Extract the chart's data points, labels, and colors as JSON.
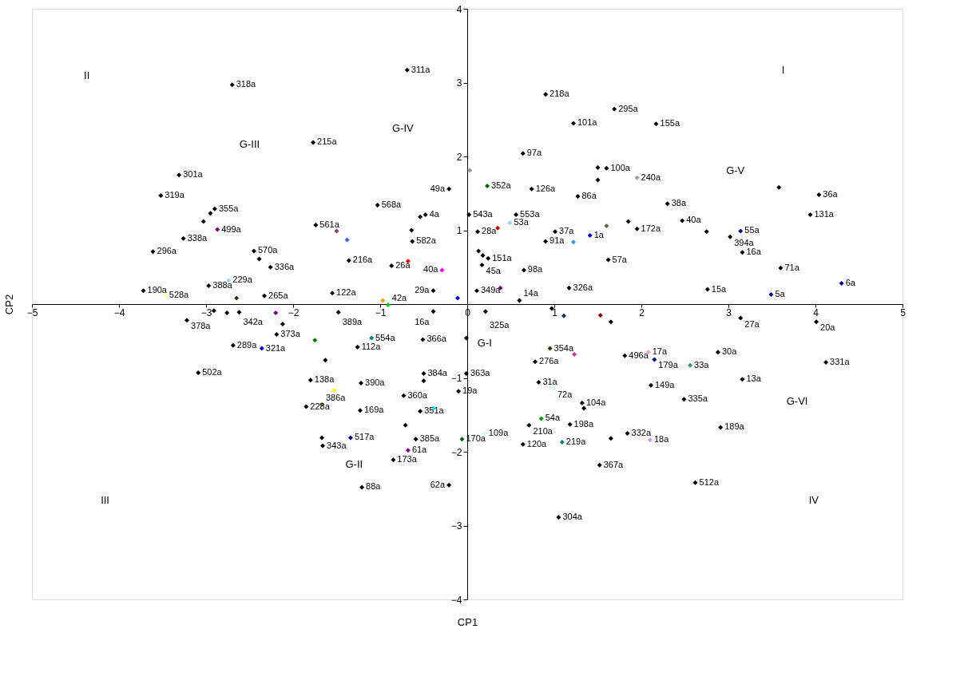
{
  "chart_data": {
    "type": "scatter",
    "xlabel": "CP1",
    "ylabel": "CP2",
    "marker": "diamond",
    "grid": false,
    "xlim": [
      -5,
      5
    ],
    "ylim": [
      -4,
      4
    ],
    "xticks": [
      -5,
      -4,
      -3,
      -2,
      -1,
      0,
      1,
      2,
      3,
      4,
      5
    ],
    "yticks": [
      -4,
      -3,
      -2,
      -1,
      1,
      2,
      3,
      4
    ],
    "x": [
      -2.7,
      -1.77,
      -3.31,
      -3.52,
      -2.9,
      -2.95,
      -3.03,
      -2.87,
      -3.26,
      -3.61,
      -2.45,
      -2.39,
      -2.26,
      -1.74,
      -1.5,
      -1.38,
      -2.97,
      -2.74,
      -3.72,
      -3.47,
      -2.65,
      -2.33,
      -2.91,
      -2.76,
      -2.62,
      -2.2,
      -3.22,
      -2.12,
      -2.19,
      -1.75,
      -2.69,
      -2.36,
      -3.09,
      -1.55,
      -1.36,
      -1.48,
      -0.97,
      -0.91,
      -1.1,
      -1.26,
      -1.63,
      -1.8,
      -1.53,
      -1.22,
      -1.85,
      -1.67,
      -1.23,
      -0.71,
      -1.67,
      -1.66,
      -1.34,
      -0.59,
      -0.68,
      -0.85,
      -1.21,
      -0.21,
      -0.06,
      0.2,
      -0.51,
      -0.5,
      -0.5,
      -0.73,
      -0.39,
      -0.54,
      -0.1,
      -0.01,
      -0.01,
      -0.39,
      -0.11,
      -0.39,
      0.11,
      0.38,
      0.21,
      0.6,
      -0.69,
      -0.21,
      0.03,
      0.23,
      0.74,
      0.64,
      -1.03,
      -0.54,
      -0.48,
      0.02,
      0.56,
      0.49,
      0.35,
      0.12,
      -0.64,
      -0.63,
      0.13,
      0.18,
      0.24,
      0.17,
      -0.68,
      -0.87,
      -0.29,
      0.65,
      0.9,
      1.69,
      1.22,
      2.17,
      1.5,
      1.6,
      1.5,
      1.95,
      1.27,
      2.3,
      2.47,
      1.85,
      1.95,
      2.75,
      3.14,
      3.02,
      3.58,
      4.04,
      3.94,
      3.16,
      3.6,
      4.3,
      3.49,
      2.76,
      3.14,
      4.01,
      1.01,
      1.41,
      1.6,
      0.9,
      1.22,
      1.62,
      1.17,
      0.97,
      1.11,
      1.53,
      1.65,
      0.95,
      1.23,
      0.78,
      1.81,
      2.08,
      2.15,
      2.56,
      2.88,
      4.12,
      3.16,
      0.82,
      0.99,
      2.11,
      2.49,
      1.32,
      1.34,
      0.85,
      0.71,
      1.18,
      0.64,
      1.09,
      1.65,
      1.84,
      2.1,
      2.91,
      1.52,
      2.62,
      1.05
    ],
    "values": [
      2.97,
      2.19,
      1.75,
      1.47,
      1.29,
      1.23,
      1.12,
      1.01,
      0.89,
      0.71,
      0.72,
      0.61,
      0.5,
      1.07,
      0.99,
      0.87,
      0.25,
      0.32,
      0.18,
      0.12,
      0.08,
      0.11,
      -0.09,
      -0.12,
      -0.11,
      -0.12,
      -0.22,
      -0.27,
      -0.41,
      -0.49,
      -0.56,
      -0.6,
      -0.93,
      0.15,
      0.59,
      -0.11,
      0.05,
      -0.01,
      -0.46,
      -0.58,
      -0.76,
      -1.03,
      -1.17,
      -1.07,
      -1.39,
      -1.36,
      -1.44,
      -1.64,
      -1.81,
      -1.92,
      -1.81,
      -1.83,
      -1.98,
      -2.11,
      -2.48,
      -2.45,
      -1.83,
      -1.75,
      -0.48,
      -0.94,
      -1.04,
      -1.24,
      -1.41,
      -1.45,
      -1.18,
      -0.94,
      -0.46,
      0.18,
      0.08,
      -0.1,
      0.18,
      0.22,
      -0.1,
      0.05,
      3.17,
      1.56,
      1.81,
      1.6,
      1.56,
      2.04,
      1.34,
      1.18,
      1.21,
      1.21,
      1.21,
      1.1,
      1.03,
      0.98,
      1.0,
      0.85,
      0.72,
      0.66,
      0.62,
      0.53,
      0.58,
      0.52,
      0.46,
      0.46,
      2.84,
      2.64,
      2.45,
      2.44,
      1.85,
      1.84,
      1.68,
      1.71,
      1.46,
      1.36,
      1.13,
      1.12,
      1.02,
      0.98,
      0.99,
      0.91,
      1.58,
      1.48,
      1.21,
      0.7,
      0.49,
      0.28,
      0.13,
      0.2,
      -0.19,
      -0.24,
      0.98,
      0.93,
      1.06,
      0.85,
      0.84,
      0.6,
      0.22,
      -0.06,
      -0.16,
      -0.15,
      -0.24,
      -0.6,
      -0.68,
      -0.78,
      -0.7,
      -0.65,
      -0.75,
      -0.83,
      -0.65,
      -0.79,
      -1.02,
      -1.06,
      -1.15,
      -1.1,
      -1.29,
      -1.34,
      -1.41,
      -1.55,
      -1.64,
      -1.63,
      -1.9,
      -1.87,
      -1.82,
      -1.75,
      -1.84,
      -1.67,
      -2.18,
      -2.42,
      -2.89
    ],
    "colors": [
      "#000000",
      "#000000",
      "#000000",
      "#000000",
      "#000000",
      "#000000",
      "#000000",
      "#800080",
      "#000000",
      "#000000",
      "#000000",
      "#000000",
      "#000000",
      "#000000",
      "#993366",
      "#3366ff",
      "#000000",
      "#99ccff",
      "#000000",
      "#ffff99",
      "#333300",
      "#000000",
      "#000000",
      "#000000",
      "#000000",
      "#800080",
      "#000000",
      "#000000",
      "#000000",
      "#008000",
      "#000000",
      "#0000ff",
      "#000000",
      "#000000",
      "#000000",
      "#000000",
      "#ff9900",
      "#00cc00",
      "#008080",
      "#000000",
      "#000000",
      "#000000",
      "#ffff00",
      "#000000",
      "#000000",
      "#808000",
      "#000000",
      "#000000",
      "#000000",
      "#000000",
      "#000080",
      "#000000",
      "#800080",
      "#000000",
      "#000000",
      "#000000",
      "#006600",
      "#ccffff",
      "#000000",
      "#000000",
      "#000000",
      "#000000",
      "#00ffff",
      "#000000",
      "#000000",
      "#000000",
      "#000000",
      "#000000",
      "#0000ff",
      "#000000",
      "#000000",
      "#800080",
      "#000000",
      "#000000",
      "#000000",
      "#000000",
      "#969696",
      "#006600",
      "#000000",
      "#000000",
      "#000000",
      "#000000",
      "#000000",
      "#000000",
      "#000000",
      "#99ccff",
      "#cc0000",
      "#000000",
      "#000000",
      "#000000",
      "#000000",
      "#000000",
      "#000000",
      "#000000",
      "#ff0000",
      "#000000",
      "#ff00ff",
      "#000000",
      "#000000",
      "#000000",
      "#000000",
      "#000000",
      "#000000",
      "#000000",
      "#000000",
      "#a0a0a0",
      "#000000",
      "#000000",
      "#000000",
      "#000000",
      "#000000",
      "#000000",
      "#000099",
      "#000000",
      "#000000",
      "#000000",
      "#000000",
      "#000000",
      "#000000",
      "#000099",
      "#000099",
      "#000000",
      "#000000",
      "#000000",
      "#000000",
      "#0000cc",
      "#666633",
      "#000000",
      "#3399ff",
      "#000000",
      "#000000",
      "#000000",
      "#003366",
      "#990000",
      "#000000",
      "#333300",
      "#cc3399",
      "#000000",
      "#000000",
      "#ff99cc",
      "#000080",
      "#339966",
      "#000000",
      "#000000",
      "#000000",
      "#000000",
      "#ccffff",
      "#000000",
      "#000000",
      "#000000",
      "#000000",
      "#009900",
      "#000000",
      "#000000",
      "#000000",
      "#008080",
      "#000000",
      "#000000",
      "#cc99ff",
      "#000000",
      "#000000",
      "#000000",
      "#000000"
    ],
    "annotations": [
      {
        "text": "318a",
        "x": -2.7,
        "y": 2.97
      },
      {
        "text": "215a",
        "x": -1.77,
        "y": 2.19
      },
      {
        "text": "301a",
        "x": -3.31,
        "y": 1.75
      },
      {
        "text": "319a",
        "x": -3.52,
        "y": 1.47
      },
      {
        "text": "355a",
        "x": -2.9,
        "y": 1.29
      },
      {
        "text": "499a",
        "x": -2.87,
        "y": 1.01
      },
      {
        "text": "338a",
        "x": -3.26,
        "y": 0.89
      },
      {
        "text": "296a",
        "x": -3.61,
        "y": 0.71
      },
      {
        "text": "570a",
        "x": -2.45,
        "y": 0.72
      },
      {
        "text": "336a",
        "x": -2.26,
        "y": 0.5
      },
      {
        "text": "561a",
        "x": -1.74,
        "y": 1.07
      },
      {
        "text": "388a",
        "x": -2.97,
        "y": 0.25
      },
      {
        "text": "229a",
        "x": -2.74,
        "y": 0.32
      },
      {
        "text": "190a",
        "x": -3.72,
        "y": 0.18
      },
      {
        "text": "528a",
        "x": -3.47,
        "y": 0.12
      },
      {
        "text": "265a",
        "x": -2.33,
        "y": 0.11
      },
      {
        "text": "342a",
        "x": -2.62,
        "y": -0.11
      },
      {
        "text": "378a",
        "x": -3.22,
        "y": -0.22
      },
      {
        "text": "373a",
        "x": -2.19,
        "y": -0.41
      },
      {
        "text": "289a",
        "x": -2.69,
        "y": -0.56
      },
      {
        "text": "321a",
        "x": -2.36,
        "y": -0.6
      },
      {
        "text": "502a",
        "x": -3.09,
        "y": -0.93
      },
      {
        "text": "122a",
        "x": -1.55,
        "y": 0.15
      },
      {
        "text": "216a",
        "x": -1.36,
        "y": 0.59
      },
      {
        "text": "389a",
        "x": -1.48,
        "y": -0.11
      },
      {
        "text": "42a",
        "x": -0.91,
        "y": -0.01
      },
      {
        "text": "554a",
        "x": -1.1,
        "y": -0.46
      },
      {
        "text": "112a",
        "x": -1.26,
        "y": -0.58
      },
      {
        "text": "138a",
        "x": -1.8,
        "y": -1.03
      },
      {
        "text": "390a",
        "x": -1.22,
        "y": -1.07
      },
      {
        "text": "228a",
        "x": -1.85,
        "y": -1.39
      },
      {
        "text": "386a",
        "x": -1.67,
        "y": -1.36
      },
      {
        "text": "169a",
        "x": -1.23,
        "y": -1.44
      },
      {
        "text": "343a",
        "x": -1.66,
        "y": -1.92
      },
      {
        "text": "517a",
        "x": -1.34,
        "y": -1.81
      },
      {
        "text": "385a",
        "x": -0.59,
        "y": -1.83
      },
      {
        "text": "61a",
        "x": -0.68,
        "y": -1.98
      },
      {
        "text": "173a",
        "x": -0.85,
        "y": -2.11
      },
      {
        "text": "88a",
        "x": -1.21,
        "y": -2.48
      },
      {
        "text": "62a",
        "x": -0.21,
        "y": -2.45
      },
      {
        "text": "170a",
        "x": -0.06,
        "y": -1.83
      },
      {
        "text": "109a",
        "x": 0.2,
        "y": -1.75
      },
      {
        "text": "366a",
        "x": -0.51,
        "y": -0.48
      },
      {
        "text": "384a",
        "x": -0.5,
        "y": -0.94
      },
      {
        "text": "360a",
        "x": -0.73,
        "y": -1.24
      },
      {
        "text": "351a",
        "x": -0.54,
        "y": -1.45
      },
      {
        "text": "19a",
        "x": -0.1,
        "y": -1.18
      },
      {
        "text": "363a",
        "x": -0.01,
        "y": -0.94
      },
      {
        "text": "29a",
        "x": -0.39,
        "y": 0.18
      },
      {
        "text": "16a",
        "x": -0.39,
        "y": -0.1
      },
      {
        "text": "349a",
        "x": 0.11,
        "y": 0.18
      },
      {
        "text": "325a",
        "x": 0.21,
        "y": -0.1
      },
      {
        "text": "14a",
        "x": 0.6,
        "y": 0.05
      },
      {
        "text": "311a",
        "x": -0.69,
        "y": 3.17
      },
      {
        "text": "49a",
        "x": -0.21,
        "y": 1.56
      },
      {
        "text": "352a",
        "x": 0.23,
        "y": 1.6
      },
      {
        "text": "126a",
        "x": 0.74,
        "y": 1.56
      },
      {
        "text": "97a",
        "x": 0.64,
        "y": 2.04
      },
      {
        "text": "568a",
        "x": -1.03,
        "y": 1.34
      },
      {
        "text": "4a",
        "x": -0.48,
        "y": 1.21
      },
      {
        "text": "543a",
        "x": 0.02,
        "y": 1.21
      },
      {
        "text": "553a",
        "x": 0.56,
        "y": 1.21
      },
      {
        "text": "53a",
        "x": 0.49,
        "y": 1.1
      },
      {
        "text": "28a",
        "x": 0.12,
        "y": 0.98
      },
      {
        "text": "582a",
        "x": -0.63,
        "y": 0.85
      },
      {
        "text": "151a",
        "x": 0.24,
        "y": 0.62
      },
      {
        "text": "45a",
        "x": 0.17,
        "y": 0.53
      },
      {
        "text": "26a",
        "x": -0.87,
        "y": 0.52
      },
      {
        "text": "40a",
        "x": -0.29,
        "y": 0.46
      },
      {
        "text": "98a",
        "x": 0.65,
        "y": 0.46
      },
      {
        "text": "218a",
        "x": 0.9,
        "y": 2.84
      },
      {
        "text": "295a",
        "x": 1.69,
        "y": 2.64
      },
      {
        "text": "101a",
        "x": 1.22,
        "y": 2.45
      },
      {
        "text": "155a",
        "x": 2.17,
        "y": 2.44
      },
      {
        "text": "100a",
        "x": 1.6,
        "y": 1.84
      },
      {
        "text": "240a",
        "x": 1.95,
        "y": 1.71
      },
      {
        "text": "86a",
        "x": 1.27,
        "y": 1.46
      },
      {
        "text": "38a",
        "x": 2.3,
        "y": 1.36
      },
      {
        "text": "40a",
        "x": 2.47,
        "y": 1.13
      },
      {
        "text": "172a",
        "x": 1.95,
        "y": 1.02
      },
      {
        "text": "55a",
        "x": 3.14,
        "y": 0.99
      },
      {
        "text": "394a",
        "x": 3.02,
        "y": 0.91
      },
      {
        "text": "36a",
        "x": 4.04,
        "y": 1.48
      },
      {
        "text": "131a",
        "x": 3.94,
        "y": 1.21
      },
      {
        "text": "16a",
        "x": 3.16,
        "y": 0.7
      },
      {
        "text": "71a",
        "x": 3.6,
        "y": 0.49
      },
      {
        "text": "6a",
        "x": 4.3,
        "y": 0.28
      },
      {
        "text": "5a",
        "x": 3.49,
        "y": 0.13
      },
      {
        "text": "15a",
        "x": 2.76,
        "y": 0.2
      },
      {
        "text": "27a",
        "x": 3.14,
        "y": -0.19
      },
      {
        "text": "20a",
        "x": 4.01,
        "y": -0.24
      },
      {
        "text": "37a",
        "x": 1.01,
        "y": 0.98
      },
      {
        "text": "1a",
        "x": 1.41,
        "y": 0.93
      },
      {
        "text": "91a",
        "x": 0.9,
        "y": 0.85
      },
      {
        "text": "57a",
        "x": 1.62,
        "y": 0.6
      },
      {
        "text": "326a",
        "x": 1.17,
        "y": 0.22
      },
      {
        "text": "354a",
        "x": 0.95,
        "y": -0.6
      },
      {
        "text": "276a",
        "x": 0.78,
        "y": -0.78
      },
      {
        "text": "496a",
        "x": 1.81,
        "y": -0.7
      },
      {
        "text": "17a",
        "x": 2.08,
        "y": -0.65
      },
      {
        "text": "179a",
        "x": 2.15,
        "y": -0.75
      },
      {
        "text": "33a",
        "x": 2.56,
        "y": -0.83
      },
      {
        "text": "30a",
        "x": 2.88,
        "y": -0.65
      },
      {
        "text": "331a",
        "x": 4.12,
        "y": -0.79
      },
      {
        "text": "13a",
        "x": 3.16,
        "y": -1.02
      },
      {
        "text": "31a",
        "x": 0.82,
        "y": -1.06
      },
      {
        "text": "72a",
        "x": 0.99,
        "y": -1.15
      },
      {
        "text": "149a",
        "x": 2.11,
        "y": -1.1
      },
      {
        "text": "335a",
        "x": 2.49,
        "y": -1.29
      },
      {
        "text": "104a",
        "x": 1.32,
        "y": -1.34
      },
      {
        "text": "54a",
        "x": 0.85,
        "y": -1.55
      },
      {
        "text": "210a",
        "x": 0.71,
        "y": -1.64
      },
      {
        "text": "198a",
        "x": 1.18,
        "y": -1.63
      },
      {
        "text": "120a",
        "x": 0.64,
        "y": -1.9
      },
      {
        "text": "219a",
        "x": 1.09,
        "y": -1.87
      },
      {
        "text": "332a",
        "x": 1.84,
        "y": -1.75
      },
      {
        "text": "18a",
        "x": 2.1,
        "y": -1.84
      },
      {
        "text": "189a",
        "x": 2.91,
        "y": -1.67
      },
      {
        "text": "367a",
        "x": 1.52,
        "y": -2.18
      },
      {
        "text": "512a",
        "x": 2.62,
        "y": -2.42
      },
      {
        "text": "304a",
        "x": 1.05,
        "y": -2.89
      },
      "II",
      "I",
      "III",
      "IV",
      "G-III",
      "G-IV",
      "G-V",
      "G-I",
      "G-II",
      "G-VI"
    ]
  }
}
